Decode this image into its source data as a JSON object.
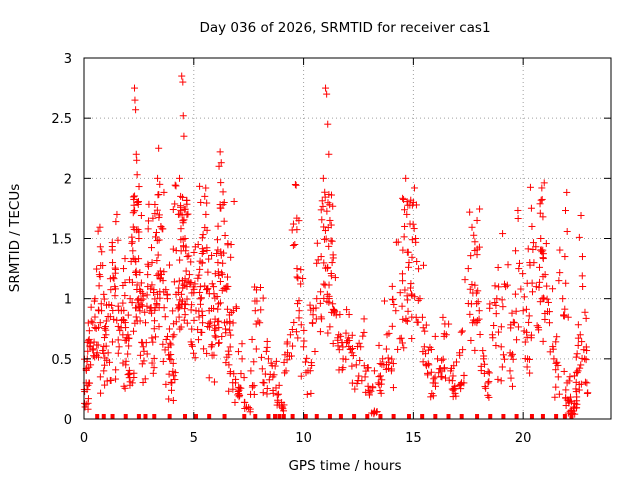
{
  "chart_data": {
    "type": "scatter",
    "title": "Day 036 of 2026, SRMTID for receiver cas1",
    "xlabel": "GPS time / hours",
    "ylabel": "SRMTID / TECUs",
    "xlim": [
      0,
      24
    ],
    "ylim": [
      0,
      3
    ],
    "xticks": [
      0,
      5,
      10,
      15,
      20
    ],
    "xtick_labels": [
      "0",
      "5",
      "10",
      "15",
      "20"
    ],
    "yticks": [
      0,
      0.5,
      1,
      1.5,
      2,
      2.5,
      3
    ],
    "ytick_labels": [
      "0",
      "0.5",
      "1",
      "1.5",
      "2",
      "2.5",
      "3"
    ],
    "grid": true,
    "marker": "+",
    "marker_color": "#ff0000",
    "series": [
      {
        "name": "SRMTID",
        "note": "approximate sample of the plotted points, values in hours / TECU",
        "points": [
          [
            0.05,
            0.1
          ],
          [
            0.1,
            0.3
          ],
          [
            0.15,
            0.5
          ],
          [
            0.2,
            0.65
          ],
          [
            0.3,
            0.45
          ],
          [
            0.4,
            0.8
          ],
          [
            0.5,
            1.0
          ],
          [
            0.6,
            0.55
          ],
          [
            0.7,
            1.2
          ],
          [
            0.8,
            0.9
          ],
          [
            0.9,
            0.4
          ],
          [
            1.0,
            0.7
          ],
          [
            1.1,
            0.55
          ],
          [
            1.2,
            0.85
          ],
          [
            1.3,
            1.3
          ],
          [
            1.4,
            1.1
          ],
          [
            1.5,
            1.7
          ],
          [
            1.6,
            0.6
          ],
          [
            1.7,
            0.9
          ],
          [
            1.8,
            1.25
          ],
          [
            1.9,
            0.45
          ],
          [
            2.0,
            0.7
          ],
          [
            2.1,
            1.0
          ],
          [
            2.2,
            0.3
          ],
          [
            2.3,
            2.75
          ],
          [
            2.32,
            2.65
          ],
          [
            2.35,
            2.57
          ],
          [
            2.38,
            2.2
          ],
          [
            2.4,
            2.15
          ],
          [
            2.42,
            2.03
          ],
          [
            2.45,
            1.8
          ],
          [
            2.5,
            1.5
          ],
          [
            2.6,
            0.95
          ],
          [
            2.7,
            0.6
          ],
          [
            2.8,
            0.8
          ],
          [
            2.9,
            1.2
          ],
          [
            3.0,
            0.9
          ],
          [
            3.1,
            1.3
          ],
          [
            3.2,
            0.75
          ],
          [
            3.3,
            1.55
          ],
          [
            3.35,
            2.0
          ],
          [
            3.4,
            2.25
          ],
          [
            3.45,
            1.95
          ],
          [
            3.5,
            1.6
          ],
          [
            3.6,
            1.15
          ],
          [
            3.7,
            0.85
          ],
          [
            3.8,
            1.0
          ],
          [
            3.9,
            0.5
          ],
          [
            4.0,
            0.3
          ],
          [
            4.1,
            0.7
          ],
          [
            4.2,
            1.4
          ],
          [
            4.3,
            1.7
          ],
          [
            4.35,
            2.0
          ],
          [
            4.4,
            1.85
          ],
          [
            4.45,
            2.85
          ],
          [
            4.5,
            2.8
          ],
          [
            4.52,
            2.52
          ],
          [
            4.55,
            2.35
          ],
          [
            4.6,
            1.5
          ],
          [
            4.7,
            1.35
          ],
          [
            4.8,
            1.2
          ],
          [
            4.9,
            0.95
          ],
          [
            5.0,
            1.05
          ],
          [
            5.1,
            0.9
          ],
          [
            5.2,
            1.45
          ],
          [
            5.3,
            1.1
          ],
          [
            5.4,
            0.8
          ],
          [
            5.5,
            1.85
          ],
          [
            5.55,
            1.7
          ],
          [
            5.6,
            1.4
          ],
          [
            5.7,
            0.9
          ],
          [
            5.8,
            0.6
          ],
          [
            5.9,
            1.1
          ],
          [
            6.0,
            0.75
          ],
          [
            6.1,
            1.3
          ],
          [
            6.15,
            2.1
          ],
          [
            6.2,
            2.22
          ],
          [
            6.25,
            2.13
          ],
          [
            6.3,
            1.2
          ],
          [
            6.4,
            0.8
          ],
          [
            6.5,
            1.1
          ],
          [
            6.6,
            0.45
          ],
          [
            6.7,
            1.45
          ],
          [
            6.8,
            0.9
          ],
          [
            6.9,
            0.3
          ],
          [
            7.0,
            0.2
          ],
          [
            7.2,
            0.5
          ],
          [
            7.4,
            0.1
          ],
          [
            7.6,
            0.4
          ],
          [
            7.8,
            0.9
          ],
          [
            8.0,
            0.8
          ],
          [
            8.2,
            0.3
          ],
          [
            8.4,
            0.5
          ],
          [
            8.6,
            0.35
          ],
          [
            8.8,
            0.2
          ],
          [
            9.0,
            0.1
          ],
          [
            9.2,
            0.4
          ],
          [
            9.4,
            0.7
          ],
          [
            9.6,
            1.45
          ],
          [
            9.7,
            1.25
          ],
          [
            9.8,
            0.9
          ],
          [
            10.0,
            0.6
          ],
          [
            10.2,
            0.4
          ],
          [
            10.4,
            0.8
          ],
          [
            10.6,
            1.0
          ],
          [
            10.8,
            1.35
          ],
          [
            10.9,
            2.0
          ],
          [
            11.0,
            2.75
          ],
          [
            11.05,
            2.7
          ],
          [
            11.1,
            2.45
          ],
          [
            11.15,
            2.2
          ],
          [
            11.2,
            1.65
          ],
          [
            11.3,
            1.3
          ],
          [
            11.4,
            0.9
          ],
          [
            11.6,
            0.7
          ],
          [
            11.8,
            0.5
          ],
          [
            12.0,
            0.65
          ],
          [
            12.2,
            0.55
          ],
          [
            12.4,
            0.45
          ],
          [
            12.6,
            0.6
          ],
          [
            12.8,
            0.35
          ],
          [
            13.0,
            0.2
          ],
          [
            13.2,
            0.05
          ],
          [
            13.4,
            0.3
          ],
          [
            13.6,
            0.5
          ],
          [
            13.8,
            0.7
          ],
          [
            14.0,
            0.4
          ],
          [
            14.2,
            0.9
          ],
          [
            14.4,
            1.05
          ],
          [
            14.6,
            1.6
          ],
          [
            14.65,
            2.0
          ],
          [
            14.7,
            1.7
          ],
          [
            14.8,
            1.3
          ],
          [
            15.0,
            1.8
          ],
          [
            15.05,
            1.92
          ],
          [
            15.1,
            1.5
          ],
          [
            15.3,
            1.0
          ],
          [
            15.5,
            0.6
          ],
          [
            15.7,
            0.45
          ],
          [
            15.9,
            0.3
          ],
          [
            16.1,
            0.5
          ],
          [
            16.3,
            0.35
          ],
          [
            16.5,
            0.7
          ],
          [
            16.7,
            0.4
          ],
          [
            16.9,
            0.25
          ],
          [
            17.1,
            0.55
          ],
          [
            17.3,
            0.3
          ],
          [
            17.5,
            1.25
          ],
          [
            17.7,
            0.8
          ],
          [
            17.8,
            1.4
          ],
          [
            17.9,
            1.65
          ],
          [
            18.0,
            0.9
          ],
          [
            18.2,
            0.5
          ],
          [
            18.4,
            0.3
          ],
          [
            18.6,
            0.7
          ],
          [
            18.8,
            1.0
          ],
          [
            19.0,
            0.6
          ],
          [
            19.2,
            1.1
          ],
          [
            19.4,
            0.4
          ],
          [
            19.6,
            0.8
          ],
          [
            19.8,
            1.25
          ],
          [
            20.0,
            0.9
          ],
          [
            20.2,
            0.5
          ],
          [
            20.3,
            1.3
          ],
          [
            20.4,
            1.6
          ],
          [
            20.6,
            1.1
          ],
          [
            20.8,
            1.5
          ],
          [
            20.85,
            1.92
          ],
          [
            20.9,
            1.68
          ],
          [
            21.0,
            1.2
          ],
          [
            21.2,
            0.8
          ],
          [
            21.4,
            0.5
          ],
          [
            21.6,
            0.35
          ],
          [
            21.8,
            1.0
          ],
          [
            21.9,
            1.35
          ],
          [
            22.0,
            0.3
          ],
          [
            22.1,
            0.15
          ],
          [
            22.2,
            0.05
          ],
          [
            22.3,
            0.1
          ],
          [
            22.4,
            0.25
          ],
          [
            22.5,
            0.4
          ],
          [
            22.6,
            0.7
          ],
          [
            22.7,
            1.35
          ],
          [
            22.8,
            0.5
          ],
          [
            22.9,
            0.3
          ]
        ]
      }
    ],
    "zero_markers_x": [
      0.6,
      0.9,
      1.3,
      1.9,
      2.5,
      2.8,
      3.2,
      3.9,
      4.6,
      5.1,
      5.7,
      6.4,
      7.3,
      7.8,
      8.4,
      8.7,
      8.9,
      9.1,
      9.5,
      10.1,
      10.6,
      11.2,
      11.7,
      12.3,
      12.9,
      13.5,
      14.1,
      14.8,
      15.4,
      16.0,
      16.6,
      17.2,
      17.9,
      18.5,
      19.1,
      19.7,
      20.4,
      20.9,
      21.5,
      21.9,
      22.2
    ]
  }
}
